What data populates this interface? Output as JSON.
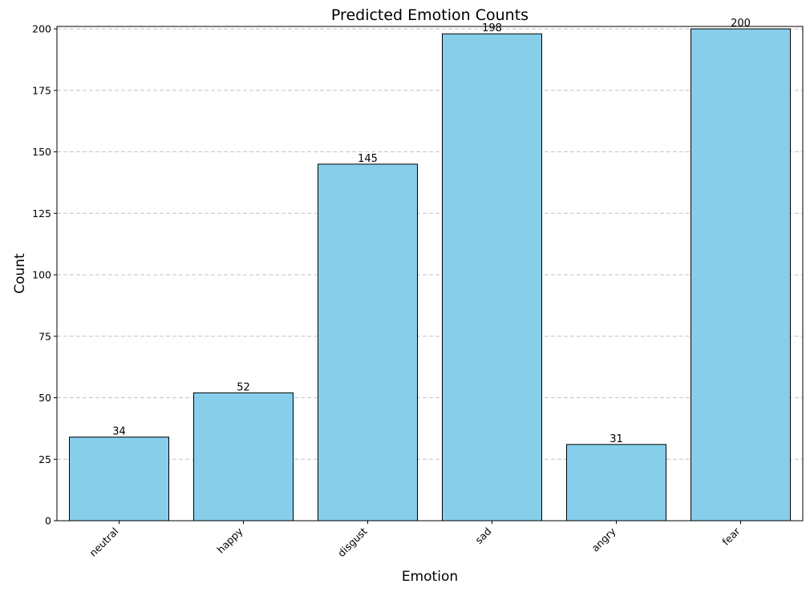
{
  "chart_data": {
    "type": "bar",
    "title": "Predicted Emotion Counts",
    "xlabel": "Emotion",
    "ylabel": "Count",
    "categories": [
      "neutral",
      "happy",
      "disgust",
      "sad",
      "angry",
      "fear"
    ],
    "values": [
      34,
      52,
      145,
      198,
      31,
      200
    ],
    "data_labels": [
      "34",
      "52",
      "145",
      "198",
      "31",
      "200"
    ],
    "ylim": [
      0,
      201
    ],
    "yticks": [
      0,
      25,
      50,
      75,
      100,
      125,
      150,
      175,
      200
    ],
    "ytick_labels": [
      "0",
      "25",
      "50",
      "75",
      "100",
      "125",
      "150",
      "175",
      "200"
    ],
    "x_tick_rotation_deg": 45,
    "grid": "y-dashed",
    "legend": "none",
    "bar_color": "#87CEEB",
    "bar_edge_color": "#000000",
    "grid_color": "#c4c4c4"
  }
}
